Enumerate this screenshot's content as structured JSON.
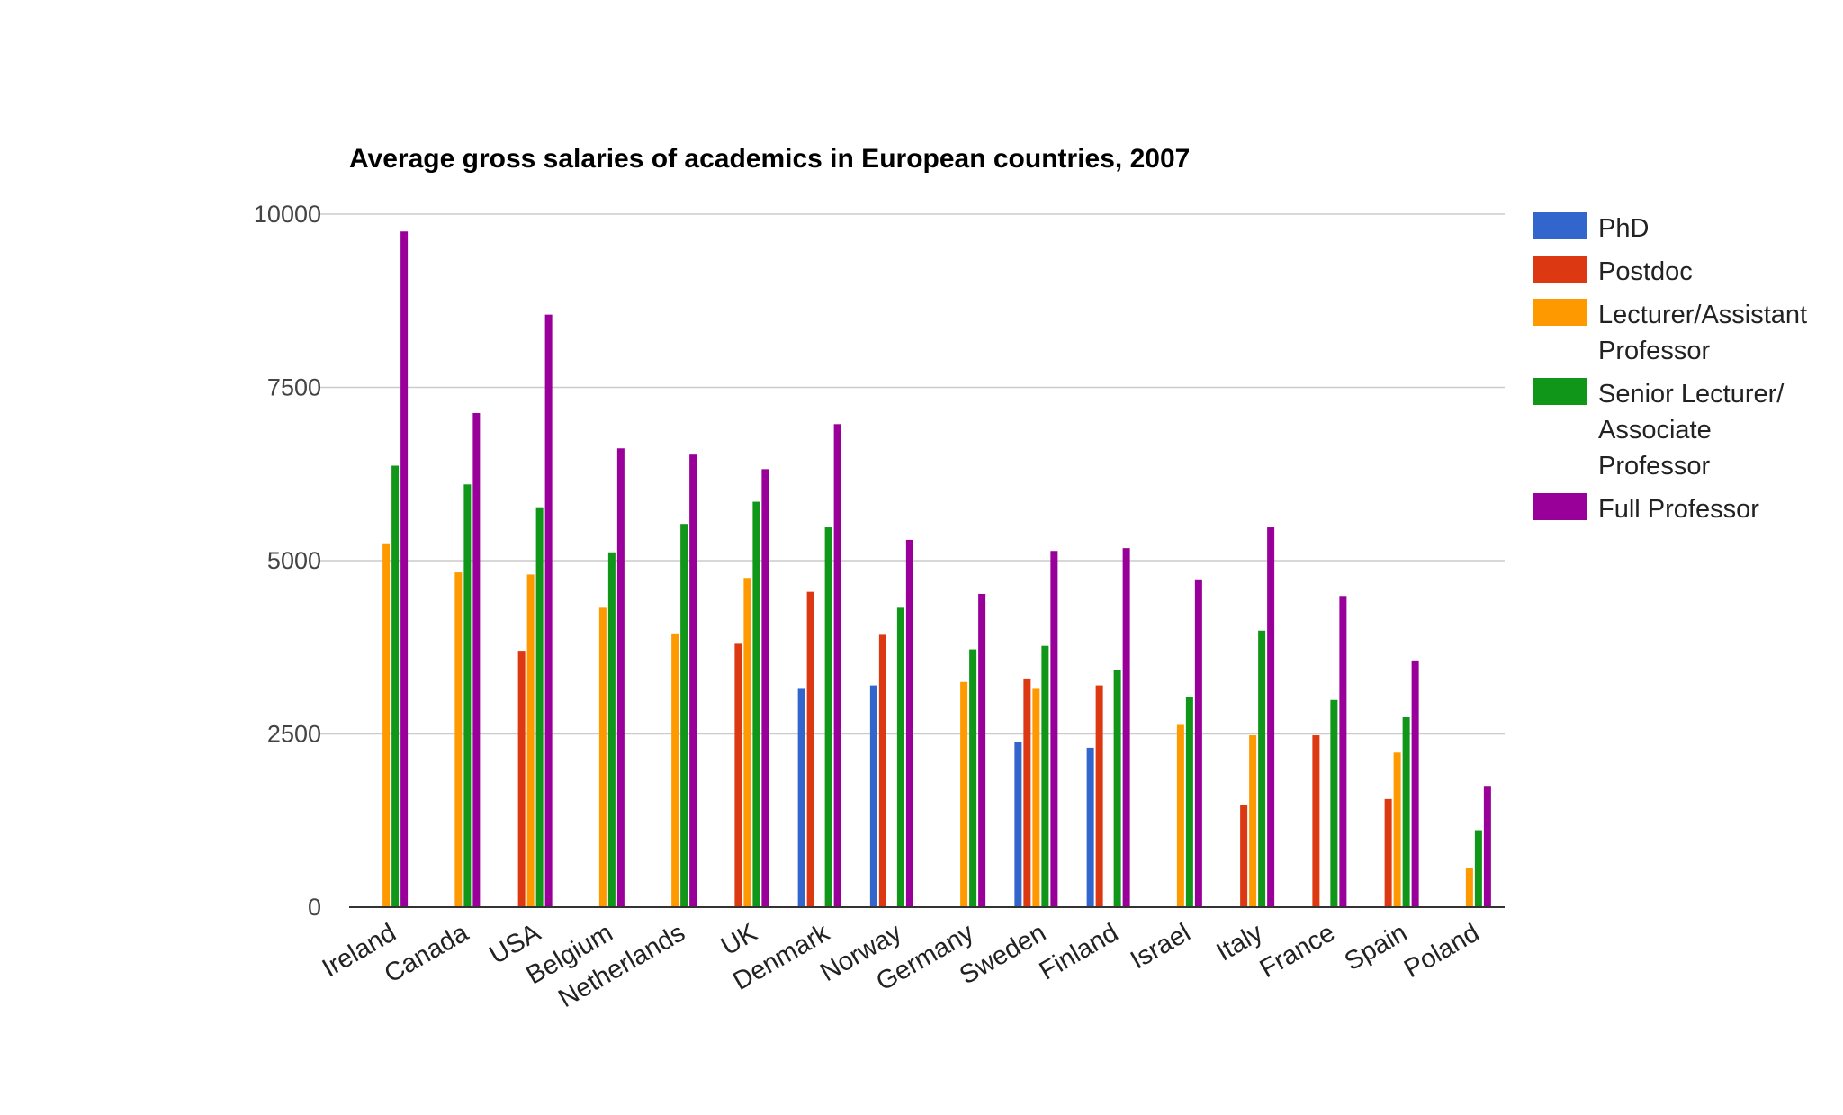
{
  "chart_data": {
    "type": "bar",
    "title": "Average gross salaries of academics in European countries, 2007",
    "xlabel": "",
    "ylabel": "",
    "ylim": [
      0,
      10000
    ],
    "yticks": [
      0,
      2500,
      5000,
      7500,
      10000
    ],
    "ytick_labels": [
      "0",
      "2500",
      "5000",
      "7500",
      "10000"
    ],
    "grid": true,
    "legend_position": "right",
    "categories": [
      "Ireland",
      "Canada",
      "USA",
      "Belgium",
      "Netherlands",
      "UK",
      "Denmark",
      "Norway",
      "Germany",
      "Sweden",
      "Finland",
      "Israel",
      "Italy",
      "France",
      "Spain",
      "Poland"
    ],
    "series": [
      {
        "name": "PhD",
        "legend_lines": [
          "PhD"
        ],
        "color": "#3366cc",
        "values": [
          null,
          null,
          null,
          null,
          null,
          null,
          3150,
          3200,
          null,
          2380,
          2300,
          null,
          null,
          null,
          null,
          null
        ]
      },
      {
        "name": "Postdoc",
        "legend_lines": [
          "Postdoc"
        ],
        "color": "#dc3912",
        "values": [
          null,
          null,
          3700,
          null,
          null,
          3800,
          4550,
          3930,
          null,
          3300,
          3200,
          null,
          1480,
          2480,
          1560,
          null
        ]
      },
      {
        "name": "Lecturer/Assistant Professor",
        "legend_lines": [
          "Lecturer/Assistant",
          "Professor"
        ],
        "color": "#ff9900",
        "values": [
          5250,
          4830,
          4800,
          4320,
          3950,
          4750,
          null,
          null,
          3250,
          3150,
          null,
          2630,
          2480,
          null,
          2230,
          560
        ]
      },
      {
        "name": "Senior Lecturer/Associate Professor",
        "legend_lines": [
          "Senior Lecturer/",
          "Associate",
          "Professor"
        ],
        "color": "#109618",
        "values": [
          6370,
          6100,
          5770,
          5120,
          5530,
          5850,
          5480,
          4320,
          3720,
          3770,
          3420,
          3030,
          3990,
          2990,
          2740,
          1110
        ]
      },
      {
        "name": "Full Professor",
        "legend_lines": [
          "Full Professor"
        ],
        "color": "#990099",
        "values": [
          9750,
          7130,
          8550,
          6620,
          6530,
          6320,
          6970,
          5300,
          4520,
          5140,
          5180,
          4730,
          5480,
          4490,
          3560,
          1750
        ]
      }
    ]
  }
}
